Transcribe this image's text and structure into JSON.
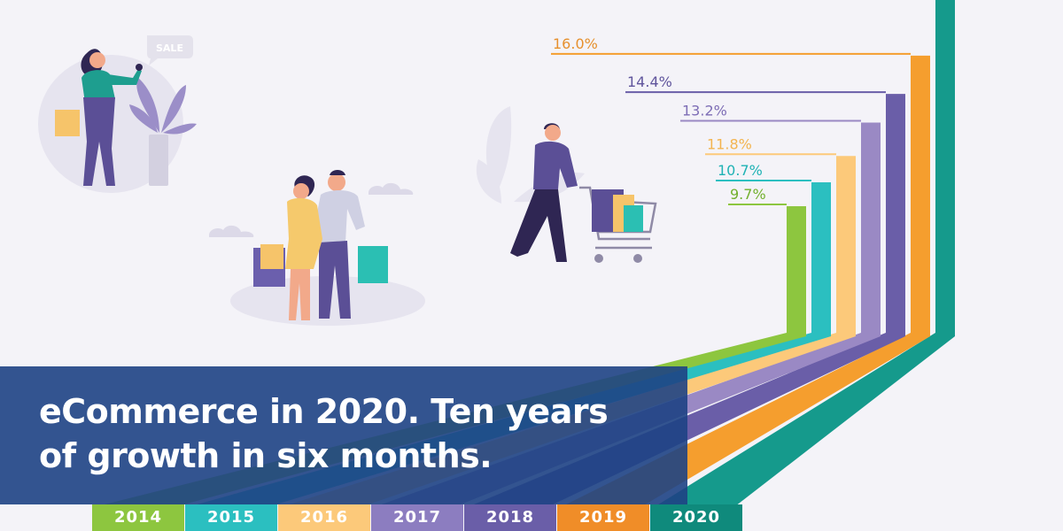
{
  "headline": {
    "line1": "eCommerce in 2020. Ten years",
    "line2": "of growth in six months."
  },
  "sale_tag": "SALE",
  "colors": {
    "background": "#f4f3f8",
    "banner": "#1e4284",
    "purple_person": "#5b4f96",
    "teal": "#1e9e8f"
  },
  "chart_data": {
    "type": "bar",
    "title": "eCommerce in 2020. Ten years of growth in six months.",
    "categories": [
      "2014",
      "2015",
      "2016",
      "2017",
      "2018",
      "2019",
      "2020"
    ],
    "values": [
      9.7,
      10.7,
      11.8,
      13.2,
      14.4,
      16.0,
      null
    ],
    "value_labels": [
      "9.7%",
      "10.7%",
      "11.8%",
      "13.2%",
      "14.4%",
      "16.0%",
      ""
    ],
    "colors": [
      "#8dc63f",
      "#2bbfc0",
      "#fcc97a",
      "#9a89c4",
      "#6a5ea8",
      "#f59e2e",
      "#159a8c"
    ],
    "label_colors": [
      "#72b02d",
      "#1fb2b4",
      "#f3b450",
      "#7d6db5",
      "#5f549c",
      "#e6902d",
      "#0e8a7c"
    ],
    "tab_colors": [
      "#8dc63f",
      "#2bbfc0",
      "#fcc97a",
      "#8c7dc0",
      "#6a5ea8",
      "#f08d28",
      "#0f8a7c"
    ],
    "ylim": [
      9.7,
      16.0
    ],
    "unit": "%"
  }
}
